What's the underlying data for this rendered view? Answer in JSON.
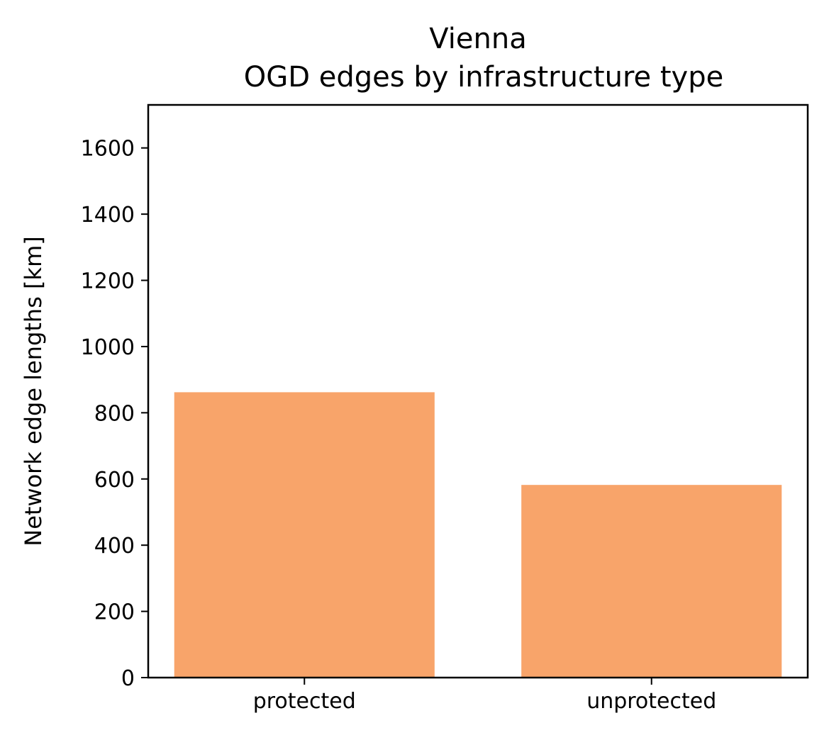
{
  "chart_data": {
    "type": "bar",
    "title_lines": [
      "Vienna",
      "OGD edges by infrastructure type"
    ],
    "xlabel": "",
    "ylabel": "Network edge lengths [km]",
    "categories": [
      "protected",
      "unprotected"
    ],
    "values": [
      862,
      582
    ],
    "ylim": [
      0,
      1730
    ],
    "yticks": [
      0,
      200,
      400,
      600,
      800,
      1000,
      1200,
      1400,
      1600
    ],
    "bar_color": "#f8a46a",
    "grid": false,
    "legend": "none"
  }
}
